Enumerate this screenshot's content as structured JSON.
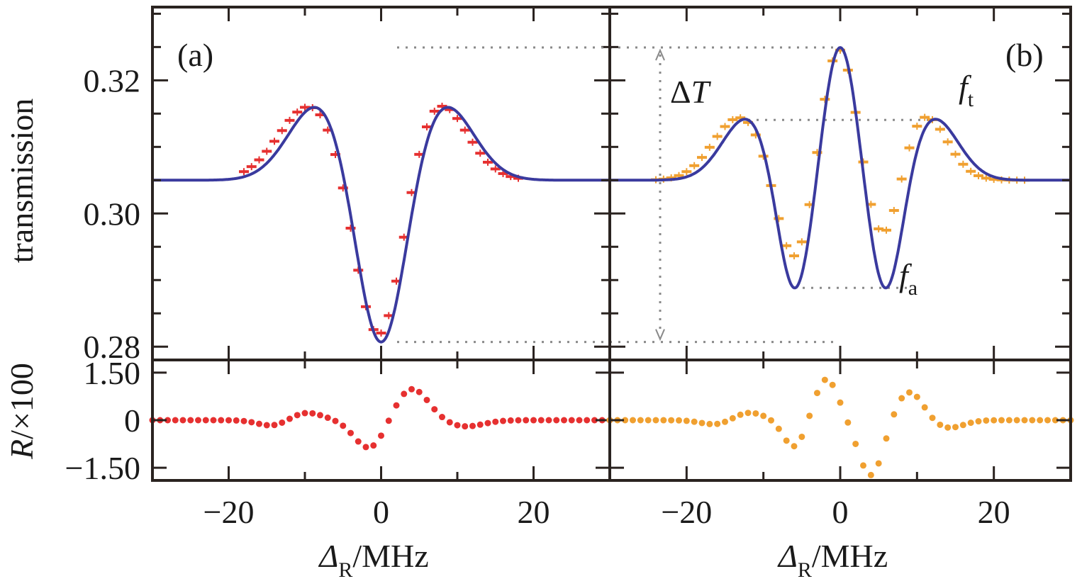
{
  "chart_data": [
    {
      "panel": "a",
      "type": "line",
      "panel_label": "(a)",
      "xlabel_symbol": "Δ",
      "xlabel_sub": "R",
      "xlabel_unit": "/MHz",
      "ylabel": "transmission",
      "xlim": [
        -30,
        30
      ],
      "ylim": [
        0.278,
        0.331
      ],
      "xticks": [
        -20,
        0,
        20
      ],
      "xtick_labels": [
        "−20",
        "0",
        "20"
      ],
      "yticks": [
        0.28,
        0.3,
        0.32
      ],
      "ytick_labels": [
        "0.28",
        "0.30",
        "0.32"
      ],
      "fit": {
        "color": "#3a3a9e",
        "baseline": 0.305,
        "components": [
          [
            -8,
            0.0118,
            4.0
          ],
          [
            8,
            0.0118,
            4.0
          ],
          [
            0,
            -0.0275,
            3.2
          ]
        ]
      },
      "data": {
        "color": "#e63030",
        "baseline": 0.305,
        "x_from": -18,
        "x_to": 18,
        "step": 1,
        "components": [
          [
            -9,
            0.0115,
            4.3
          ],
          [
            7,
            0.0125,
            4.0
          ],
          [
            -0.2,
            -0.027,
            3.2
          ]
        ]
      },
      "residuals": {
        "color": "#e63030",
        "ylabel_symbol": "R",
        "ylabel_rest": "/×100",
        "ylim": [
          -1.9,
          1.9
        ],
        "yticks": [
          1.5,
          0,
          -1.5
        ],
        "ytick_labels": [
          "1.50",
          "0",
          "−1.50"
        ],
        "components": [
          [
            -1.5,
            -0.9,
            2.0
          ],
          [
            4,
            1.0,
            2.2
          ],
          [
            -10,
            0.25,
            2.2
          ],
          [
            -14,
            -0.2,
            2.0
          ],
          [
            11,
            -0.2,
            2.4
          ]
        ]
      }
    },
    {
      "panel": "b",
      "type": "line",
      "panel_label": "(b)",
      "xlabel_symbol": "Δ",
      "xlabel_sub": "R",
      "xlabel_unit": "/MHz",
      "xlim": [
        -30,
        30
      ],
      "ylim": [
        0.278,
        0.331
      ],
      "xticks": [
        -20,
        0,
        20
      ],
      "xtick_labels": [
        "−20",
        "0",
        "20"
      ],
      "yticks": [
        0.28,
        0.3,
        0.32
      ],
      "annotations": {
        "delta_T": "ΔT",
        "ft_symbol": "f",
        "ft_sub": "t",
        "fa_symbol": "f",
        "fa_sub": "a"
      },
      "fit": {
        "color": "#3a3a9e",
        "baseline": 0.305,
        "components": [
          [
            -12,
            0.0095,
            3.3
          ],
          [
            12,
            0.0095,
            3.3
          ],
          [
            -6,
            -0.0185,
            2.2
          ],
          [
            6,
            -0.0185,
            2.2
          ],
          [
            0,
            0.0208,
            2.2
          ]
        ]
      },
      "data": {
        "color": "#f0a030",
        "baseline": 0.305,
        "x_from": -24,
        "x_to": 24,
        "step": 1,
        "components": [
          [
            -13,
            0.0095,
            3.5
          ],
          [
            10.5,
            0.0105,
            3.2
          ],
          [
            -6,
            -0.0135,
            2.3
          ],
          [
            5.8,
            -0.012,
            2.3
          ],
          [
            -0.2,
            0.0205,
            2.3
          ]
        ]
      },
      "residuals": {
        "color": "#f0a030",
        "ylim": [
          -1.9,
          1.9
        ],
        "yticks": [
          1.5,
          0,
          -1.5
        ],
        "components": [
          [
            -1.8,
            1.3,
            1.5
          ],
          [
            4,
            -1.75,
            1.6
          ],
          [
            -6,
            -0.85,
            1.4
          ],
          [
            9,
            0.9,
            1.8
          ],
          [
            -12,
            0.25,
            2.0
          ],
          [
            14,
            -0.25,
            2.0
          ],
          [
            -16,
            -0.15,
            2.0
          ]
        ]
      }
    }
  ]
}
